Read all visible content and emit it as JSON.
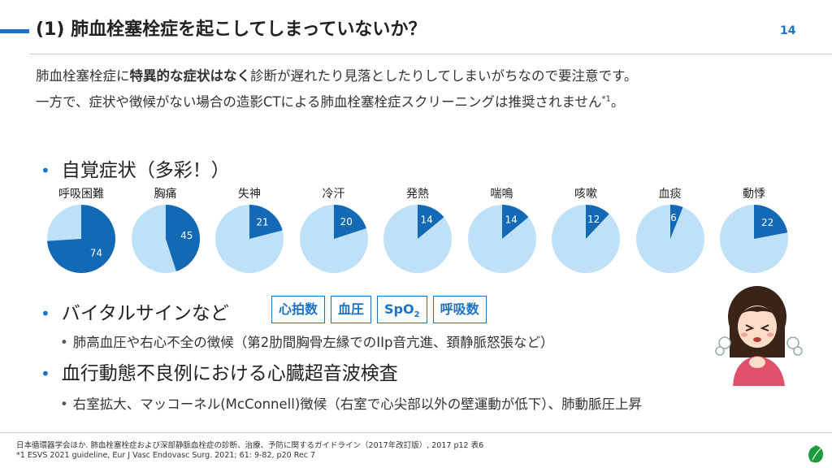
{
  "header": {
    "title": "(1) 肺血栓塞栓症を起こしてしまっていないか？",
    "page_number": "14"
  },
  "intro": {
    "line1_pre": "肺血栓塞栓症に",
    "line1_bold": "特異的な症状はなく",
    "line1_post": "診断が遅れたり見落としたりしてしまいがちなので要注意です。",
    "line2": "一方で、症状や徴候がない場合の造影CTによる肺血栓塞栓症スクリーニングは推奨されません",
    "line2_sup": "*1",
    "line2_end": "。"
  },
  "section1": {
    "title": "自覚症状（多彩！）"
  },
  "chart_data": {
    "type": "pie",
    "categories": [
      "呼吸困難",
      "胸痛",
      "失神",
      "冷汗",
      "発熱",
      "喘鳴",
      "咳嗽",
      "血痰",
      "動悸"
    ],
    "values": [
      74,
      45,
      21,
      20,
      14,
      14,
      12,
      6,
      22
    ],
    "colors": {
      "filled": "#1369b5",
      "empty": "#bfe1f7"
    }
  },
  "section2": {
    "title": "バイタルサインなど",
    "boxes": [
      "心拍数",
      "血圧",
      "SpO",
      "呼吸数"
    ],
    "spo2_sub": "2",
    "sub": "肺高血圧や右心不全の徴候（第2肋間胸骨左縁でのIIp音亢進、頚静脈怒張など）"
  },
  "section3": {
    "title": "血行動態不良例における心臓超音波検査",
    "sub": "右室拡大、マッコーネル(McConnell)徴候（右室で心尖部以外の壁運動が低下）、肺動脈圧上昇"
  },
  "footer": {
    "ref1": "日本循環器学会ほか. 肺血栓塞栓症および深部静脈血栓症の診断、治療、予防に関するガイドライン（2017年改訂版）, 2017 p12 表6",
    "ref2": "*1 ESVS 2021 guideline, Eur J Vasc Endovasc Surg. 2021; 61: 9-82, p20 Rec 7"
  }
}
